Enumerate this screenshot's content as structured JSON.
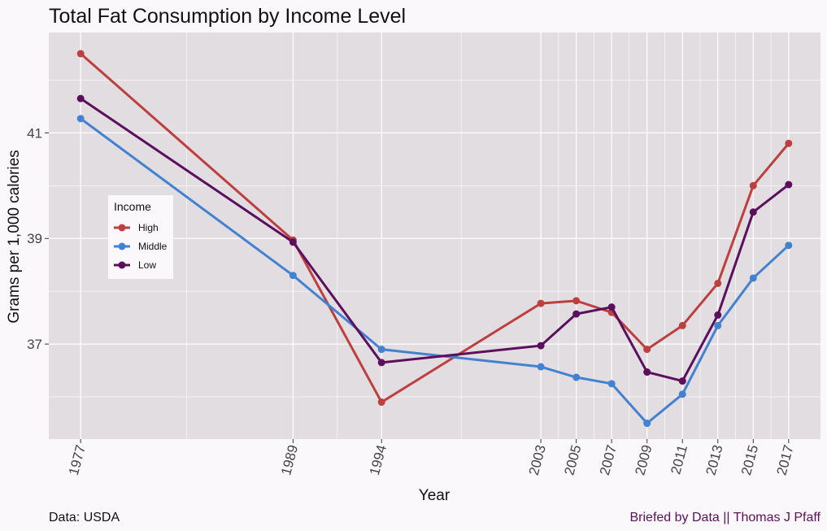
{
  "chart_data": {
    "type": "line",
    "title": "Total Fat Consumption by Income Level",
    "xlabel": "Year",
    "ylabel": "Grams per 1,000 calories",
    "x": [
      1977,
      1989,
      1994,
      2003,
      2005,
      2007,
      2009,
      2011,
      2013,
      2015,
      2017
    ],
    "x_tick_labels": [
      "1977",
      "1989",
      "1994",
      "2003",
      "2005",
      "2007",
      "2009",
      "2011",
      "2013",
      "2015",
      "2017"
    ],
    "y_ticks": [
      37,
      39,
      41
    ],
    "y_tick_labels": [
      "37",
      "39",
      "41"
    ],
    "xlim": [
      1975.2,
      2018.8
    ],
    "ylim": [
      35.2,
      42.9
    ],
    "grid": true,
    "legend_title": "Income",
    "legend_position": "left",
    "series": [
      {
        "name": "High",
        "color": "#bd3f3f",
        "values": [
          42.5,
          38.97,
          35.9,
          37.77,
          37.82,
          37.6,
          36.9,
          37.35,
          38.15,
          40.0,
          40.8
        ]
      },
      {
        "name": "Middle",
        "color": "#4282d0",
        "values": [
          41.27,
          38.3,
          36.9,
          36.57,
          36.37,
          36.25,
          35.5,
          36.05,
          37.35,
          38.25,
          38.87
        ]
      },
      {
        "name": "Low",
        "color": "#5c0f5c",
        "values": [
          41.65,
          38.93,
          36.65,
          36.97,
          37.57,
          37.7,
          36.47,
          36.3,
          37.55,
          39.5,
          40.02
        ]
      }
    ]
  },
  "caption": {
    "left": "Data: USDA",
    "right": "Briefed by Data || Thomas J Pfaff",
    "right_color": "#5c0f5c"
  }
}
